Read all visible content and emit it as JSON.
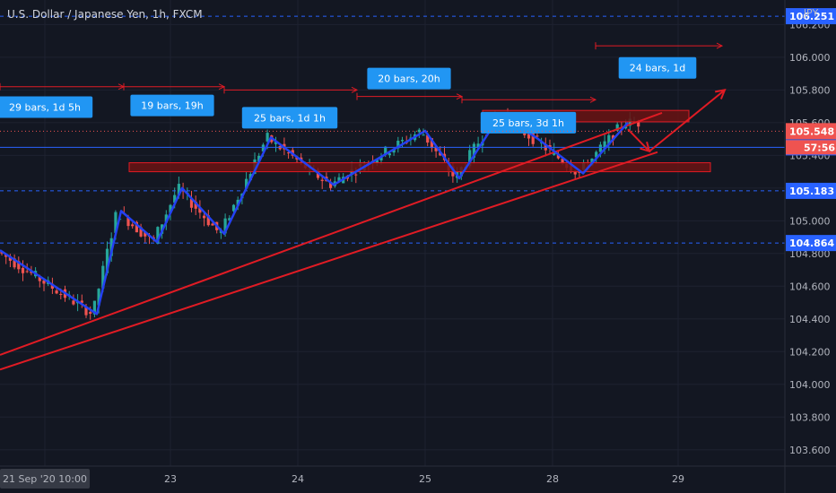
{
  "chart_title": "U.S. Dollar / Japanese Yen, 1h, FXCM",
  "currency_label": "JPY",
  "colors": {
    "background": "#131722",
    "up": "#26a69a",
    "down": "#ef5350",
    "pattern": "#2441f2",
    "trendline": "#e01b24",
    "zone_fill": "#6b1313",
    "zone_stroke": "#e01b24",
    "label_bg": "#2196f3",
    "level_line": "#2962ff",
    "current_price_tag": "#ef5350",
    "grid": "#1e2230",
    "axis_text": "#b2b5be"
  },
  "chart_data": {
    "type": "candlestick",
    "title": "U.S. Dollar / Japanese Yen, 1h, FXCM",
    "ylim": [
      103.5,
      106.35
    ],
    "xlim": [
      0,
      932
    ],
    "y_ticks": [
      103.6,
      103.8,
      104.0,
      104.2,
      104.4,
      104.6,
      104.8,
      105.0,
      105.2,
      105.4,
      105.6,
      105.8,
      106.0,
      106.2
    ],
    "y_tick_labels": [
      "103.600",
      "103.800",
      "104.000",
      "104.200",
      "104.400",
      "104.600",
      "104.800",
      "105.000",
      "105.200",
      "105.400",
      "105.600",
      "105.800",
      "106.000",
      "106.200"
    ],
    "x_ticks": [
      {
        "label": "21 Sep '20  10:00",
        "x": 50
      },
      {
        "label": "23",
        "x": 190
      },
      {
        "label": "24",
        "x": 332
      },
      {
        "label": "25",
        "x": 474
      },
      {
        "label": "28",
        "x": 616
      },
      {
        "label": "29",
        "x": 756
      }
    ],
    "current_price": 105.548,
    "countdown": "57:56",
    "price_levels": [
      {
        "value": 106.251,
        "label": "106.251",
        "style": "dashed"
      },
      {
        "value": 105.449,
        "label": "105.449",
        "style": "solid"
      },
      {
        "value": 105.183,
        "label": "105.183",
        "style": "dashed"
      },
      {
        "value": 104.864,
        "label": "104.864",
        "style": "dashed"
      }
    ],
    "pivot_path": [
      {
        "x": 0,
        "price": 104.82
      },
      {
        "x": 108,
        "price": 104.43
      },
      {
        "x": 135,
        "price": 105.06
      },
      {
        "x": 175,
        "price": 104.87
      },
      {
        "x": 203,
        "price": 105.2
      },
      {
        "x": 250,
        "price": 104.92
      },
      {
        "x": 302,
        "price": 105.51
      },
      {
        "x": 372,
        "price": 105.22
      },
      {
        "x": 474,
        "price": 105.55
      },
      {
        "x": 512,
        "price": 105.26
      },
      {
        "x": 558,
        "price": 105.65
      },
      {
        "x": 600,
        "price": 105.5
      },
      {
        "x": 650,
        "price": 105.29
      },
      {
        "x": 700,
        "price": 105.6
      }
    ],
    "trendlines": [
      {
        "x1": 0,
        "p1": 104.18,
        "x2": 738,
        "p2": 105.66
      },
      {
        "x1": 0,
        "p1": 104.09,
        "x2": 733,
        "p2": 105.42
      }
    ],
    "resistance_zones": [
      {
        "x1": 144,
        "x2": 792,
        "p_top": 105.355,
        "p_bottom": 105.3
      },
      {
        "x1": 538,
        "x2": 768,
        "p_top": 105.675,
        "p_bottom": 105.605
      }
    ],
    "forecast_arrows": [
      {
        "from": [
          700,
          105.56
        ],
        "to": [
          724,
          105.425
        ]
      },
      {
        "from": [
          724,
          105.425
        ],
        "to": [
          808,
          105.8
        ]
      }
    ],
    "measure_arrows": [
      {
        "x1": 0,
        "x2": 138,
        "price": 105.82
      },
      {
        "x1": 138,
        "x2": 250,
        "price": 105.82
      },
      {
        "x1": 250,
        "x2": 398,
        "price": 105.8
      },
      {
        "x1": 398,
        "x2": 515,
        "price": 105.76
      },
      {
        "x1": 515,
        "x2": 664,
        "price": 105.74
      },
      {
        "x1": 664,
        "x2": 805,
        "price": 106.07
      }
    ],
    "bar_labels": [
      {
        "text": "29 bars, 1d 5h",
        "x": 50,
        "price": 105.695
      },
      {
        "text": "19 bars, 19h",
        "x": 192,
        "price": 105.705
      },
      {
        "text": "25 bars, 1d 1h",
        "x": 323,
        "price": 105.63
      },
      {
        "text": "20 bars, 20h",
        "x": 456,
        "price": 105.87
      },
      {
        "text": "25 bars, 3d 1h",
        "x": 589,
        "price": 105.6
      },
      {
        "text": "24 bars, 1d",
        "x": 733,
        "price": 105.935
      }
    ]
  }
}
